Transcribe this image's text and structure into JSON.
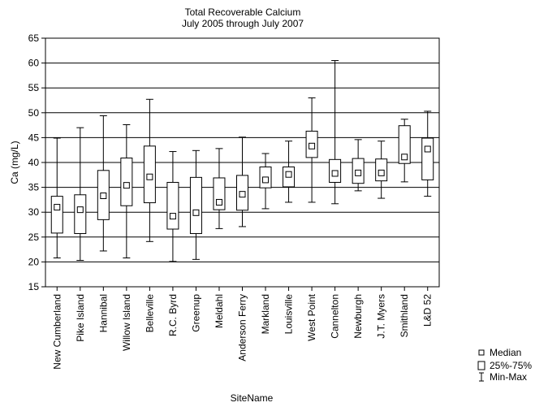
{
  "chart_data": {
    "type": "box",
    "title": "Total Recoverable Calcium",
    "subtitle": "July 2005 through July 2007",
    "xlabel": "SiteName",
    "ylabel": "Ca (mg/L)",
    "ylim": [
      15,
      65
    ],
    "yticks": [
      15,
      20,
      25,
      30,
      35,
      40,
      45,
      50,
      55,
      60,
      65
    ],
    "grid": true,
    "legend": {
      "placement": "bottom-right",
      "entries": [
        "Median",
        "25%-75%",
        "Min-Max"
      ]
    },
    "categories": [
      "New Cumberland",
      "Pike Island",
      "Hannibal",
      "Willow Island",
      "Belleville",
      "R.C. Byrd",
      "Greenup",
      "Meldahl",
      "Anderson Ferry",
      "Markland",
      "Louisville",
      "West Point",
      "Cannelton",
      "Newburgh",
      "J.T. Myers",
      "Smithland",
      "L&D 52"
    ],
    "boxes": [
      {
        "min": 20.8,
        "q1": 25.8,
        "median": 31.0,
        "q3": 33.2,
        "max": 44.9
      },
      {
        "min": 20.3,
        "q1": 25.7,
        "median": 30.5,
        "q3": 33.5,
        "max": 47.0
      },
      {
        "min": 22.2,
        "q1": 28.5,
        "median": 33.3,
        "q3": 38.4,
        "max": 49.4
      },
      {
        "min": 20.8,
        "q1": 31.3,
        "median": 35.4,
        "q3": 40.9,
        "max": 47.6
      },
      {
        "min": 24.1,
        "q1": 31.9,
        "median": 37.1,
        "q3": 43.3,
        "max": 52.7
      },
      {
        "min": 20.1,
        "q1": 26.6,
        "median": 29.2,
        "q3": 36.0,
        "max": 42.2
      },
      {
        "min": 20.5,
        "q1": 25.7,
        "median": 29.9,
        "q3": 37.0,
        "max": 42.4
      },
      {
        "min": 26.7,
        "q1": 30.5,
        "median": 32.0,
        "q3": 36.9,
        "max": 42.8
      },
      {
        "min": 27.1,
        "q1": 30.4,
        "median": 33.6,
        "q3": 37.4,
        "max": 45.1
      },
      {
        "min": 30.7,
        "q1": 34.9,
        "median": 36.5,
        "q3": 39.1,
        "max": 41.8
      },
      {
        "min": 32.0,
        "q1": 35.1,
        "median": 37.6,
        "q3": 39.1,
        "max": 44.3
      },
      {
        "min": 32.0,
        "q1": 41.0,
        "median": 43.3,
        "q3": 46.3,
        "max": 53.0
      },
      {
        "min": 31.7,
        "q1": 36.0,
        "median": 37.8,
        "q3": 40.6,
        "max": 60.5
      },
      {
        "min": 34.3,
        "q1": 35.8,
        "median": 37.9,
        "q3": 40.8,
        "max": 44.6
      },
      {
        "min": 32.8,
        "q1": 36.3,
        "median": 37.9,
        "q3": 40.7,
        "max": 44.3
      },
      {
        "min": 36.1,
        "q1": 39.8,
        "median": 41.1,
        "q3": 47.4,
        "max": 48.7
      },
      {
        "min": 33.2,
        "q1": 36.5,
        "median": 42.7,
        "q3": 44.9,
        "max": 50.3
      }
    ]
  }
}
